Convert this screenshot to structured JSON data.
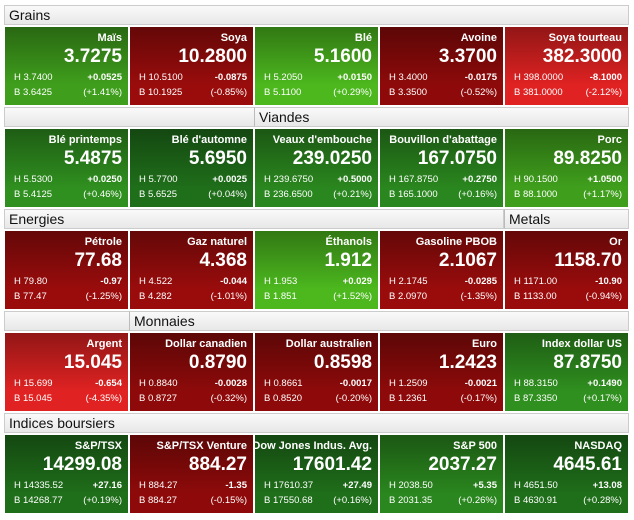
{
  "sections": [
    {
      "headers": [
        "Grains"
      ],
      "tiles": [
        {
          "name": "Maïs",
          "price": "3.7275",
          "high": "H 3.7400",
          "change": "+0.0525",
          "low": "B 3.6425",
          "pct": "(+1.41%)",
          "color": "#3f9f1c"
        },
        {
          "name": "Soya",
          "price": "10.2800",
          "high": "H 10.5100",
          "change": "-0.0875",
          "low": "B 10.1925",
          "pct": "(-0.85%)",
          "color": "#9a0c0c"
        },
        {
          "name": "Blé",
          "price": "5.1600",
          "high": "H 5.2050",
          "change": "+0.0150",
          "low": "B 5.1100",
          "pct": "(+0.29%)",
          "color": "#4cb81e"
        },
        {
          "name": "Avoine",
          "price": "3.3700",
          "high": "H 3.4000",
          "change": "-0.0175",
          "low": "B 3.3500",
          "pct": "(-0.52%)",
          "color": "#8e0a0a"
        },
        {
          "name": "Soya tourteau",
          "price": "382.3000",
          "high": "H 398.0000",
          "change": "-8.1000",
          "low": "B 381.0000",
          "pct": "(-2.12%)",
          "color": "#e02222"
        }
      ]
    },
    {
      "headers": [
        "Viandes"
      ],
      "tiles": [
        {
          "name": "Blé printemps",
          "price": "5.4875",
          "high": "H 5.5300",
          "change": "+0.0250",
          "low": "B 5.4125",
          "pct": "(+0.46%)",
          "color": "#2f8f1f"
        },
        {
          "name": "Blé d'automne",
          "price": "5.6950",
          "high": "H 5.7700",
          "change": "+0.0025",
          "low": "B 5.6525",
          "pct": "(+0.04%)",
          "color": "#1f6e1a"
        },
        {
          "name": "Veaux d'embouche",
          "price": "239.0250",
          "high": "H 239.6750",
          "change": "+0.5000",
          "low": "B 236.6500",
          "pct": "(+0.21%)",
          "color": "#2a861e"
        },
        {
          "name": "Bouvillon d'abattage",
          "price": "167.0750",
          "high": "H 167.8750",
          "change": "+0.2750",
          "low": "B 165.1000",
          "pct": "(+0.16%)",
          "color": "#2a861e"
        },
        {
          "name": "Porc",
          "price": "89.8250",
          "high": "H 90.1500",
          "change": "+1.0500",
          "low": "B 88.1000",
          "pct": "(+1.17%)",
          "color": "#3f9f1c"
        }
      ]
    },
    {
      "headers": [
        "Energies",
        "Metals"
      ],
      "tiles": [
        {
          "name": "Pétrole",
          "price": "77.68",
          "high": "H 79.80",
          "change": "-0.97",
          "low": "B 77.47",
          "pct": "(-1.25%)",
          "color": "#9a0c0c"
        },
        {
          "name": "Gaz naturel",
          "price": "4.368",
          "high": "H 4.522",
          "change": "-0.044",
          "low": "B 4.282",
          "pct": "(-1.01%)",
          "color": "#9a0c0c"
        },
        {
          "name": "Éthanols",
          "price": "1.912",
          "high": "H 1.953",
          "change": "+0.029",
          "low": "B 1.851",
          "pct": "(+1.52%)",
          "color": "#4cb81e"
        },
        {
          "name": "Gasoline PBOB",
          "price": "2.1067",
          "high": "H 2.1745",
          "change": "-0.0285",
          "low": "B 2.0970",
          "pct": "(-1.35%)",
          "color": "#9a0c0c"
        },
        {
          "name": "Or",
          "price": "1158.70",
          "high": "H 1171.00",
          "change": "-10.90",
          "low": "B 1133.00",
          "pct": "(-0.94%)",
          "color": "#9a0c0c"
        }
      ]
    },
    {
      "headers": [
        "Monnaies"
      ],
      "tiles": [
        {
          "name": "Argent",
          "price": "15.045",
          "high": "H 15.699",
          "change": "-0.654",
          "low": "B 15.045",
          "pct": "(-4.35%)",
          "color": "#e02222"
        },
        {
          "name": "Dollar canadien",
          "price": "0.8790",
          "high": "H 0.8840",
          "change": "-0.0028",
          "low": "B 0.8727",
          "pct": "(-0.32%)",
          "color": "#8e0a0a"
        },
        {
          "name": "Dollar australien",
          "price": "0.8598",
          "high": "H 0.8661",
          "change": "-0.0017",
          "low": "B 0.8520",
          "pct": "(-0.20%)",
          "color": "#8e0a0a"
        },
        {
          "name": "Euro",
          "price": "1.2423",
          "high": "H 1.2509",
          "change": "-0.0021",
          "low": "B 1.2361",
          "pct": "(-0.17%)",
          "color": "#8e0a0a"
        },
        {
          "name": "Index dollar US",
          "price": "87.8750",
          "high": "H 88.3150",
          "change": "+0.1490",
          "low": "B 87.3350",
          "pct": "(+0.17%)",
          "color": "#2f8f1f"
        }
      ]
    },
    {
      "headers": [
        "Indices boursiers"
      ],
      "tiles": [
        {
          "name": "S&P/TSX",
          "price": "14299.08",
          "high": "H 14335.52",
          "change": "+27.16",
          "low": "B 14268.77",
          "pct": "(+0.19%)",
          "color": "#1f6e1a"
        },
        {
          "name": "S&P/TSX Venture",
          "price": "884.27",
          "high": "H 884.27",
          "change": "-1.35",
          "low": "B 884.27",
          "pct": "(-0.15%)",
          "color": "#8e0a0a"
        },
        {
          "name": "Dow Jones Indus. Avg.",
          "price": "17601.42",
          "high": "H 17610.37",
          "change": "+27.49",
          "low": "B 17550.68",
          "pct": "(+0.16%)",
          "color": "#1f6e1a"
        },
        {
          "name": "S&P 500",
          "price": "2037.27",
          "high": "H 2038.50",
          "change": "+5.35",
          "low": "B 2031.35",
          "pct": "(+0.26%)",
          "color": "#2a861e"
        },
        {
          "name": "NASDAQ",
          "price": "4645.61",
          "high": "H 4651.50",
          "change": "+13.08",
          "low": "B 4630.91",
          "pct": "(+0.28%)",
          "color": "#1f6e1a"
        }
      ]
    }
  ]
}
